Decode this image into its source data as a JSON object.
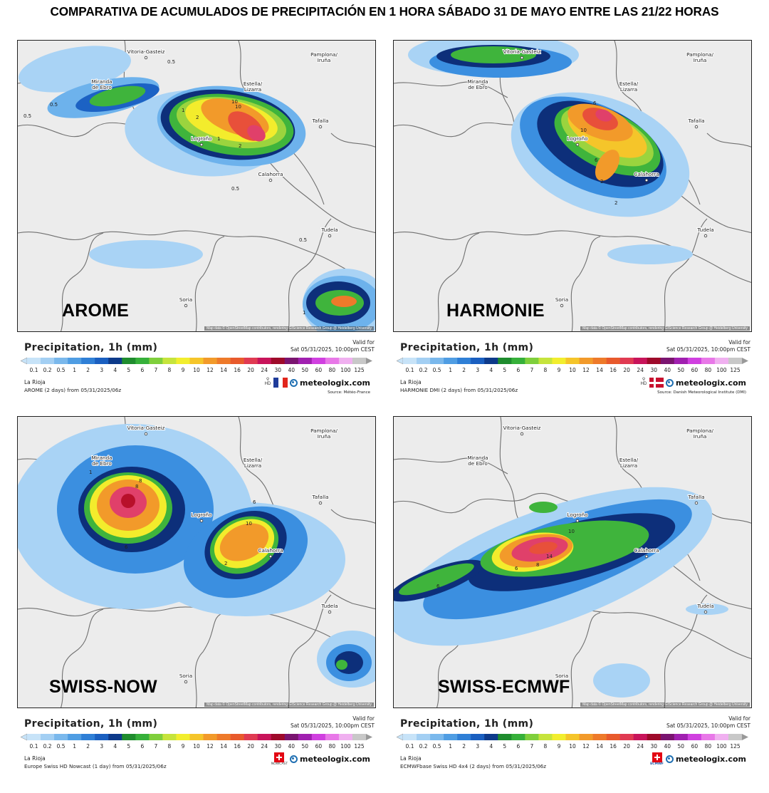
{
  "page_title": "COMPARATIVA DE ACUMULADOS DE PRECIPITACIÓN EN 1 HORA SÁBADO 31 DE MAYO ENTRE LAS 21/22 HORAS",
  "legend_common": {
    "title": "Precipitation, 1h (mm)",
    "valid_label": "Valid for",
    "valid_time": "Sat 05/31/2025, 10:00pm CEST",
    "region": "La Rioja",
    "brand": "meteologix.com",
    "scale_values": [
      "0.1",
      "0.2",
      "0.5",
      "1",
      "2",
      "3",
      "4",
      "5",
      "6",
      "7",
      "8",
      "9",
      "10",
      "12",
      "14",
      "16",
      "20",
      "24",
      "30",
      "40",
      "50",
      "60",
      "80",
      "100",
      "125"
    ],
    "scale_colors": [
      "#c7e3f8",
      "#a3cff3",
      "#7ab8ec",
      "#4f9de3",
      "#2f7fd6",
      "#1a5fc0",
      "#0d3a8a",
      "#1f8c2e",
      "#36b03a",
      "#7fcf3c",
      "#c6e43c",
      "#f2ee2e",
      "#f5c52a",
      "#f29a2a",
      "#ee7a2a",
      "#e85a2c",
      "#e03a52",
      "#c8145a",
      "#9e0a2a",
      "#7a1470",
      "#a020b0",
      "#d040e0",
      "#e878e8",
      "#f0b0f0",
      "#c8c8c8"
    ]
  },
  "cities": [
    "Vitoria-Gasteiz",
    "Miranda de Ebro",
    "Pamplona/ Iruña",
    "Estella/ Lizarra",
    "Tafalla",
    "Logroño",
    "Calahorra",
    "Tudela",
    "Soria"
  ],
  "attribution": "Map data © OpenStreetMap contributors, rendering GIScience Research Group @ Heidelberg University",
  "panels": [
    {
      "model_name": "AROME",
      "model_info": "AROME (2 days) from 05/31/2025/06z",
      "source": "Source: Météo-France",
      "flag": "france",
      "contour_labels": [
        "0.5",
        "0.5",
        "0.5",
        "1",
        "2",
        "10",
        "10",
        "1",
        "2",
        "0.5",
        "0.5",
        "1"
      ]
    },
    {
      "model_name": "HARMONIE",
      "model_info": "HARMONIE DMI (2 days) from 05/31/2025/06z",
      "source": "Source: Danish Meteorological Institute (DMI)",
      "flag": "denmark",
      "contour_labels": [
        "10",
        "6",
        "2",
        "6",
        "2"
      ]
    },
    {
      "model_name": "SWISS-NOW",
      "model_info": "Europe Swiss HD Nowcast (1 day) from 05/31/2025/06z",
      "source": "",
      "flag": "swiss",
      "badge": "NOWCAST",
      "contour_labels": [
        "1",
        "8",
        "6",
        "10",
        "6",
        "2",
        "8"
      ]
    },
    {
      "model_name": "SWISS-ECMWF",
      "model_info": "ECMWFbase Swiss HD 4x4 (2 days) from 05/31/2025/06z",
      "source": "",
      "flag": "swiss",
      "badge": "ECMWF",
      "contour_labels": [
        "10",
        "14",
        "8",
        "6",
        "6"
      ]
    }
  ]
}
